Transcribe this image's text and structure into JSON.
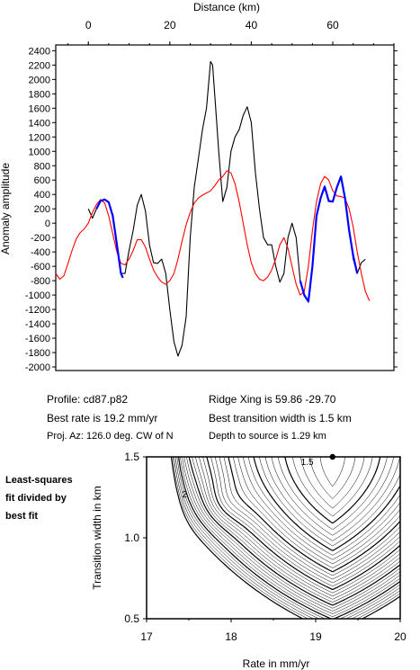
{
  "chart_data": [
    {
      "type": "line",
      "xlabel": "Distance (km)",
      "ylabel": "Anomaly amplitude",
      "x_ticks": [
        0,
        20,
        40,
        60
      ],
      "xlim": [
        -8,
        75
      ],
      "y_ticks": [
        2400,
        2200,
        2000,
        1800,
        1600,
        1400,
        1200,
        1000,
        800,
        600,
        400,
        200,
        0,
        -200,
        -400,
        -600,
        -800,
        -1000,
        -1200,
        -1400,
        -1600,
        -1800,
        -2000
      ],
      "ylim": [
        -2050,
        2480
      ],
      "series": [
        {
          "color": "#000000",
          "points": [
            [
              0,
              200
            ],
            [
              1,
              70
            ],
            [
              2,
              200
            ],
            [
              3,
              310
            ],
            [
              4,
              330
            ],
            [
              5,
              300
            ],
            [
              6,
              120
            ],
            [
              7,
              -300
            ],
            [
              8,
              -700
            ],
            [
              9,
              -700
            ],
            [
              10,
              -380
            ],
            [
              11,
              -100
            ],
            [
              12,
              250
            ],
            [
              13,
              400
            ],
            [
              14,
              170
            ],
            [
              15,
              -300
            ],
            [
              16,
              -550
            ],
            [
              17,
              -560
            ],
            [
              18,
              -500
            ],
            [
              19,
              -700
            ],
            [
              20,
              -1200
            ],
            [
              21,
              -1650
            ],
            [
              22,
              -1850
            ],
            [
              23,
              -1700
            ],
            [
              24,
              -1300
            ],
            [
              25,
              -200
            ],
            [
              26,
              500
            ],
            [
              27,
              900
            ],
            [
              28,
              1300
            ],
            [
              29,
              1600
            ],
            [
              30,
              2250
            ],
            [
              30.5,
              2200
            ],
            [
              31,
              1800
            ],
            [
              32,
              1000
            ],
            [
              33,
              300
            ],
            [
              34,
              500
            ],
            [
              35,
              1000
            ],
            [
              36,
              1200
            ],
            [
              37,
              1300
            ],
            [
              38,
              1500
            ],
            [
              39,
              1620
            ],
            [
              40,
              1400
            ],
            [
              41,
              700
            ],
            [
              42,
              200
            ],
            [
              43,
              -200
            ],
            [
              44,
              -300
            ],
            [
              45,
              -300
            ],
            [
              46,
              -600
            ],
            [
              47,
              -820
            ],
            [
              48,
              -700
            ],
            [
              49,
              -200
            ],
            [
              50,
              0
            ],
            [
              51,
              -200
            ],
            [
              52,
              -800
            ],
            [
              53,
              -1000
            ],
            [
              54,
              -1100
            ],
            [
              55,
              -600
            ],
            [
              56,
              100
            ],
            [
              57,
              350
            ],
            [
              58,
              500
            ],
            [
              59,
              300
            ],
            [
              60,
              300
            ],
            [
              61,
              500
            ],
            [
              62,
              650
            ],
            [
              63,
              350
            ],
            [
              64,
              -100
            ],
            [
              65,
              -500
            ],
            [
              66,
              -700
            ],
            [
              67,
              -550
            ],
            [
              68,
              -500
            ]
          ]
        },
        {
          "color": "#ff0000",
          "points": [
            [
              -8,
              -700
            ],
            [
              -7,
              -780
            ],
            [
              -6,
              -730
            ],
            [
              -5,
              -560
            ],
            [
              -4,
              -380
            ],
            [
              -3,
              -220
            ],
            [
              -2,
              -130
            ],
            [
              -1,
              -80
            ],
            [
              0,
              0
            ],
            [
              1,
              150
            ],
            [
              2,
              260
            ],
            [
              3,
              330
            ],
            [
              4,
              280
            ],
            [
              5,
              100
            ],
            [
              6,
              -150
            ],
            [
              7,
              -400
            ],
            [
              8,
              -560
            ],
            [
              9,
              -580
            ],
            [
              10,
              -500
            ],
            [
              11,
              -380
            ],
            [
              12,
              -230
            ],
            [
              13,
              -230
            ],
            [
              14,
              -330
            ],
            [
              15,
              -500
            ],
            [
              16,
              -650
            ],
            [
              17,
              -750
            ],
            [
              18,
              -820
            ],
            [
              19,
              -850
            ],
            [
              20,
              -800
            ],
            [
              21,
              -700
            ],
            [
              22,
              -500
            ],
            [
              23,
              -250
            ],
            [
              24,
              -20
            ],
            [
              25,
              150
            ],
            [
              26,
              280
            ],
            [
              27,
              350
            ],
            [
              28,
              390
            ],
            [
              29,
              420
            ],
            [
              30,
              450
            ],
            [
              31,
              520
            ],
            [
              32,
              600
            ],
            [
              33,
              650
            ],
            [
              34,
              730
            ],
            [
              35,
              700
            ],
            [
              36,
              550
            ],
            [
              37,
              300
            ],
            [
              38,
              0
            ],
            [
              39,
              -300
            ],
            [
              40,
              -550
            ],
            [
              41,
              -700
            ],
            [
              42,
              -780
            ],
            [
              43,
              -800
            ],
            [
              44,
              -750
            ],
            [
              45,
              -650
            ],
            [
              46,
              -500
            ],
            [
              47,
              -300
            ],
            [
              48,
              -200
            ],
            [
              49,
              -350
            ],
            [
              50,
              -600
            ],
            [
              51,
              -850
            ],
            [
              52,
              -1000
            ],
            [
              53,
              -950
            ],
            [
              54,
              -600
            ],
            [
              55,
              -100
            ],
            [
              56,
              300
            ],
            [
              57,
              550
            ],
            [
              58,
              650
            ],
            [
              59,
              600
            ],
            [
              60,
              450
            ],
            [
              61,
              380
            ],
            [
              62,
              370
            ],
            [
              63,
              350
            ],
            [
              64,
              200
            ],
            [
              65,
              -50
            ],
            [
              66,
              -400
            ],
            [
              67,
              -700
            ],
            [
              68,
              -950
            ],
            [
              69,
              -1080
            ]
          ]
        },
        {
          "color": "#0000ff",
          "points": [
            [
              2,
              200
            ],
            [
              3,
              310
            ],
            [
              4,
              330
            ],
            [
              5,
              290
            ],
            [
              6,
              100
            ],
            [
              7,
              -300
            ],
            [
              8,
              -700
            ],
            [
              8.5,
              -760
            ],
            [
              52,
              -800
            ],
            [
              53,
              -1000
            ],
            [
              54,
              -1090
            ],
            [
              55,
              -600
            ],
            [
              56,
              100
            ],
            [
              57,
              350
            ],
            [
              58,
              510
            ],
            [
              59,
              310
            ],
            [
              60,
              300
            ],
            [
              61,
              500
            ],
            [
              62,
              650
            ],
            [
              63,
              350
            ],
            [
              64,
              -100
            ],
            [
              65,
              -450
            ],
            [
              66,
              -700
            ]
          ]
        }
      ]
    },
    {
      "type": "heatmap",
      "subtype": "contour",
      "xlabel": "Rate in mm/yr",
      "ylabel": "Transition width in km",
      "x_ticks": [
        "17",
        "18",
        "19",
        "20"
      ],
      "y_ticks": [
        "1.5",
        "1.0",
        "0.5"
      ],
      "xlim": [
        17,
        20
      ],
      "ylim": [
        0.5,
        1.5
      ],
      "contour_labels": [
        {
          "text": "2",
          "x": 17.45,
          "y": 1.25
        },
        {
          "text": "1.5",
          "x": 18.9,
          "y": 1.45
        }
      ],
      "best_fit": {
        "x": 19.2,
        "y": 1.5
      }
    }
  ],
  "info": {
    "profile": "Profile: cd87.p82",
    "best_rate": "Best rate is 19.2 mm/yr",
    "proj_az": "Proj. Az: 126.0 deg. CW of N",
    "ridge_xing": "Ridge Xing is 59.86 -29.70",
    "transition": "Best transition width is 1.5 km",
    "depth": "Depth to source is   1.29 km"
  },
  "side_label": [
    "Least-squares",
    "fit divided by",
    "best fit"
  ]
}
